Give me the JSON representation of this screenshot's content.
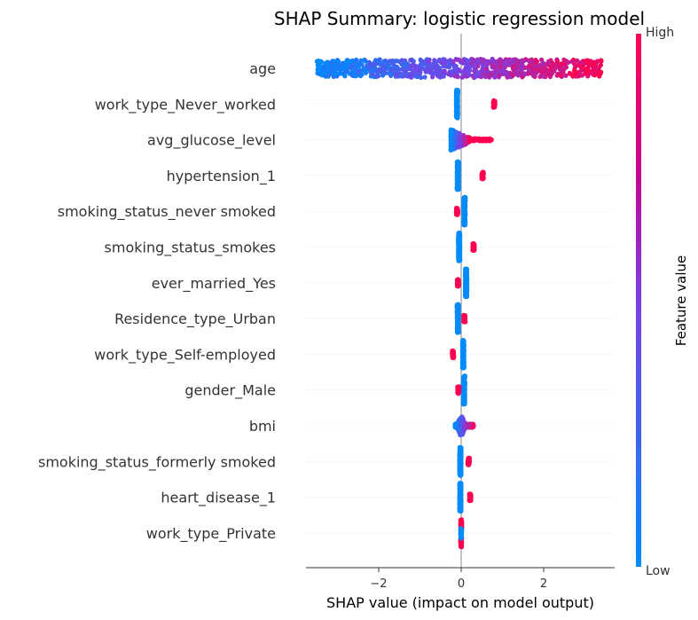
{
  "chart_data": {
    "type": "scatter",
    "subtype": "shap-beeswarm",
    "title": "SHAP Summary: logistic regression model",
    "xlabel": "SHAP value (impact on model output)",
    "ylabel": "",
    "xlim": [
      -3.8,
      3.75
    ],
    "xticks": [
      -2,
      0,
      2
    ],
    "xtick_labels": [
      "−2",
      "0",
      "2"
    ],
    "colorbar": {
      "title": "Feature value",
      "high_label": "High",
      "low_label": "Low",
      "low_color": "#008bfb",
      "high_color": "#ff0051"
    },
    "features": [
      {
        "name": "age",
        "kind": "continuous",
        "min": -3.5,
        "max": 3.4
      },
      {
        "name": "work_type_Never_worked",
        "kind": "binary",
        "low_value": -0.1,
        "high_value": 0.8
      },
      {
        "name": "avg_glucose_level",
        "kind": "skewed",
        "min": -0.25,
        "max": 0.75
      },
      {
        "name": "hypertension_1",
        "kind": "binary",
        "low_value": -0.08,
        "high_value": 0.52
      },
      {
        "name": "smoking_status_never smoked",
        "kind": "binary",
        "low_value": 0.08,
        "high_value": -0.1
      },
      {
        "name": "smoking_status_smokes",
        "kind": "binary",
        "low_value": -0.05,
        "high_value": 0.3
      },
      {
        "name": "ever_married_Yes",
        "kind": "binary",
        "low_value": 0.12,
        "high_value": -0.08
      },
      {
        "name": "Residence_type_Urban",
        "kind": "binary",
        "low_value": -0.08,
        "high_value": 0.08
      },
      {
        "name": "work_type_Self-employed",
        "kind": "binary",
        "low_value": 0.05,
        "high_value": -0.2
      },
      {
        "name": "gender_Male",
        "kind": "binary",
        "low_value": 0.07,
        "high_value": -0.07
      },
      {
        "name": "bmi",
        "kind": "continuous_small",
        "min": -0.15,
        "max": 0.3
      },
      {
        "name": "smoking_status_formerly smoked",
        "kind": "binary",
        "low_value": -0.02,
        "high_value": 0.18
      },
      {
        "name": "heart_disease_1",
        "kind": "binary",
        "low_value": -0.02,
        "high_value": 0.22
      },
      {
        "name": "work_type_Private",
        "kind": "binary_stacked",
        "low_value": 0.0,
        "high_value": 0.0
      }
    ]
  }
}
